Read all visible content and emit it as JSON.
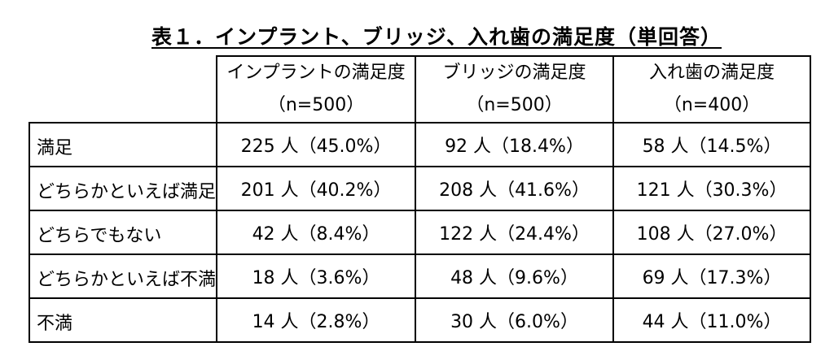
{
  "title": "表１．インプラント、ブリッジ、入れ歯の満足度（単回答）",
  "columns": [
    {
      "name": "インプラントの満足度",
      "n": "（n=500）"
    },
    {
      "name": "ブリッジの満足度",
      "n": "（n=500）"
    },
    {
      "name": "入れ歯の満足度",
      "n": "（n=400）"
    }
  ],
  "rows": [
    {
      "label": "満足",
      "cells": [
        "225 人（45.0%）",
        "92 人（18.4%）",
        "58 人（14.5%）"
      ]
    },
    {
      "label": "どちらかといえば満足",
      "cells": [
        "201 人（40.2%）",
        "208 人（41.6%）",
        "121 人（30.3%）"
      ]
    },
    {
      "label": "どちらでもない",
      "cells": [
        "42 人（8.4%）",
        "122 人（24.4%）",
        "108 人（27.0%）"
      ]
    },
    {
      "label": "どちらかといえば不満",
      "cells": [
        "18 人（3.6%）",
        "48 人（9.6%）",
        "69 人（17.3%）"
      ]
    },
    {
      "label": "不満",
      "cells": [
        "14 人（2.8%）",
        "30 人（6.0%）",
        "44 人（11.0%）"
      ]
    }
  ]
}
